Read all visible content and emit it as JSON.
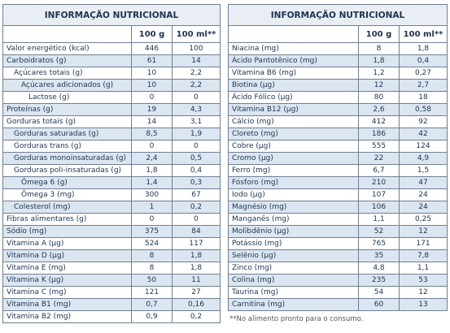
{
  "left": {
    "title": "INFORMAÇÃO NUTRICIONAL",
    "headers": [
      "100 g",
      "100 ml**"
    ],
    "rows": [
      [
        "Valor energético (kcal)",
        "446",
        "100"
      ],
      [
        "Carboidratos (g)",
        "61",
        "14"
      ],
      [
        "Açúcares totais (g)",
        "10",
        "2,2"
      ],
      [
        "Açúcares adicionados (g)",
        "10",
        "2,2"
      ],
      [
        "Lactose (g)",
        "0",
        "0"
      ],
      [
        "Proteínas (g)",
        "19",
        "4,3"
      ],
      [
        "Gorduras totais (g)",
        "14",
        "3,1"
      ],
      [
        "Gorduras saturadas (g)",
        "8,5",
        "1,9"
      ],
      [
        "Gorduras trans (g)",
        "0",
        "0"
      ],
      [
        "Gorduras monoinsaturadas (g)",
        "2,4",
        "0,5"
      ],
      [
        "Gorduras poli-insaturadas (g)",
        "1,8",
        "0,4"
      ],
      [
        "Ômega 6 (g)",
        "1,4",
        "0,3"
      ],
      [
        "Ômega 3 (mg)",
        "300",
        "67"
      ],
      [
        "Colesterol (mg)",
        "1",
        "0,2"
      ],
      [
        "Fibras alimentares (g)",
        "0",
        "0"
      ],
      [
        "Sódio (mg)",
        "375",
        "84"
      ],
      [
        "Vitamina A (µg)",
        "524",
        "117"
      ],
      [
        "Vitamina D (µg)",
        "8",
        "1,8"
      ],
      [
        "Vitamina E (mg)",
        "8",
        "1,8"
      ],
      [
        "Vitamina K (µg)",
        "50",
        "11"
      ],
      [
        "Vitamina C (mg)",
        "121",
        "27"
      ],
      [
        "Vitamina B1 (mg)",
        "0,7",
        "0,16"
      ],
      [
        "Vitamina B2 (mg)",
        "0,9",
        "0,2"
      ]
    ]
  },
  "right": {
    "title": "INFORMAÇÃO NUTRICIONAL",
    "headers": [
      "100 g",
      "100 ml**"
    ],
    "rows": [
      [
        "Niacina (mg)",
        "8",
        "1,8"
      ],
      [
        "Ácido Pantotênico (mg)",
        "1,8",
        "0,4"
      ],
      [
        "Vitamina B6 (mg)",
        "1,2",
        "0,27"
      ],
      [
        "Biotina (µg)",
        "12",
        "2,7"
      ],
      [
        "Ácido Fólico (µg)",
        "80",
        "18"
      ],
      [
        "Vitamina B12 (µg)",
        "2,6",
        "0,58"
      ],
      [
        "Cálcio (mg)",
        "412",
        "92"
      ],
      [
        "Cloreto (mg)",
        "186",
        "42"
      ],
      [
        "Cobre (µg)",
        "555",
        "124"
      ],
      [
        "Cromo (µg)",
        "22",
        "4,9"
      ],
      [
        "Ferro (mg)",
        "6,7",
        "1,5"
      ],
      [
        "Fósforo (mg)",
        "210",
        "47"
      ],
      [
        "Iodo (µg)",
        "107",
        "24"
      ],
      [
        "Magnésio (mg)",
        "106",
        "24"
      ],
      [
        "Manganês (mg)",
        "1,1",
        "0,25"
      ],
      [
        "Molibdênio (µg)",
        "52",
        "12"
      ],
      [
        "Potássio (mg)",
        "765",
        "171"
      ],
      [
        "Selênio (µg)",
        "35",
        "7,8"
      ],
      [
        "Zinco (mg)",
        "4,8",
        "1,1"
      ],
      [
        "Colina (mg)",
        "235",
        "53"
      ],
      [
        "Taurina (mg)",
        "54",
        "12"
      ],
      [
        "Carnitina (mg)",
        "60",
        "13"
      ]
    ]
  },
  "footnote": "**No alimento pronto para o consumo."
}
